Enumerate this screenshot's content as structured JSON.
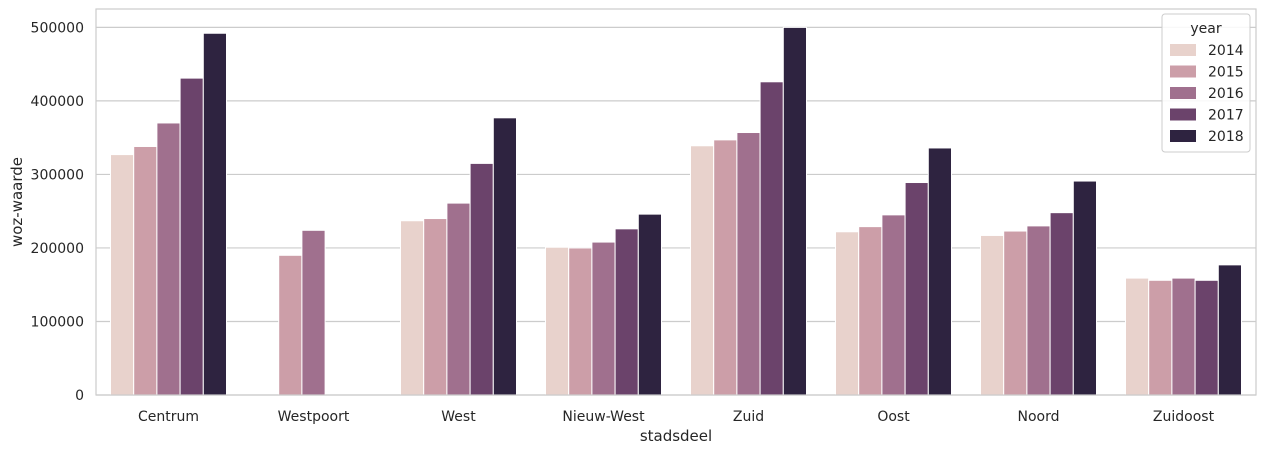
{
  "chart_data": {
    "type": "bar",
    "title": "",
    "xlabel": "stadsdeel",
    "ylabel": "woz-waarde",
    "ylim": [
      0,
      525000
    ],
    "yticks": [
      0,
      100000,
      200000,
      300000,
      400000,
      500000
    ],
    "grid": "horizontal",
    "legend": {
      "title": "year",
      "placement": "top-right"
    },
    "categories": [
      "Centrum",
      "Westpoort",
      "West",
      "Nieuw-West",
      "Zuid",
      "Oost",
      "Noord",
      "Zuidoost"
    ],
    "series": [
      {
        "name": "2014",
        "color": "#e8d2cc",
        "values": [
          327000,
          null,
          237000,
          201000,
          339000,
          222000,
          217000,
          159000
        ]
      },
      {
        "name": "2015",
        "color": "#cc9ea8",
        "values": [
          338000,
          190000,
          240000,
          200000,
          347000,
          229000,
          223000,
          156000
        ]
      },
      {
        "name": "2016",
        "color": "#a0708e",
        "values": [
          370000,
          224000,
          261000,
          208000,
          357000,
          245000,
          230000,
          159000
        ]
      },
      {
        "name": "2017",
        "color": "#6b436b",
        "values": [
          431000,
          null,
          315000,
          226000,
          426000,
          289000,
          248000,
          156000
        ]
      },
      {
        "name": "2018",
        "color": "#2e2340",
        "values": [
          492000,
          null,
          377000,
          246000,
          500000,
          336000,
          291000,
          177000
        ]
      }
    ]
  }
}
